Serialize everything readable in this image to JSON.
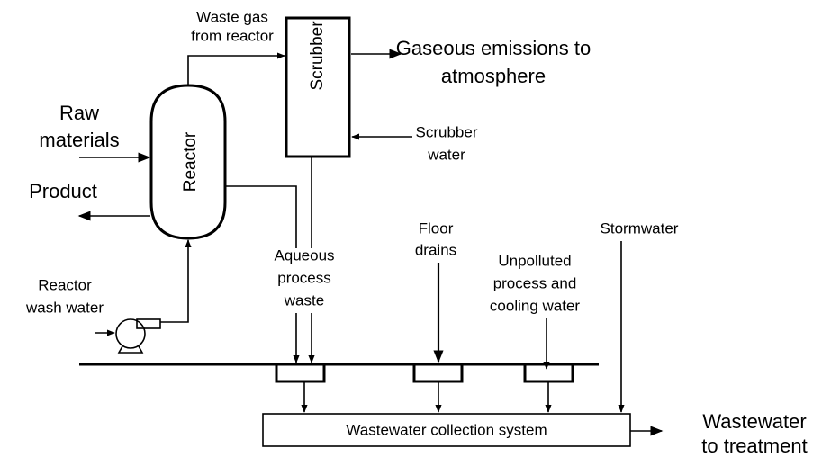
{
  "labels": {
    "waste_gas": [
      "Waste gas",
      "from reactor"
    ],
    "scrubber": "Scrubber",
    "gaseous_emissions": [
      "Gaseous emissions to",
      "atmosphere"
    ],
    "raw_materials": [
      "Raw",
      "materials"
    ],
    "reactor": "Reactor",
    "product": "Product",
    "scrubber_water": [
      "Scrubber",
      "water"
    ],
    "floor_drains": [
      "Floor",
      "drains"
    ],
    "stormwater": "Stormwater",
    "aqueous_process_waste": [
      "Aqueous",
      "process",
      "waste"
    ],
    "unpolluted_water": [
      "Unpolluted",
      "process and",
      "cooling water"
    ],
    "reactor_wash_water": [
      "Reactor",
      "wash water"
    ],
    "collection_system": "Wastewater collection system",
    "wastewater_treatment": [
      "Wastewater",
      "to treatment"
    ]
  }
}
